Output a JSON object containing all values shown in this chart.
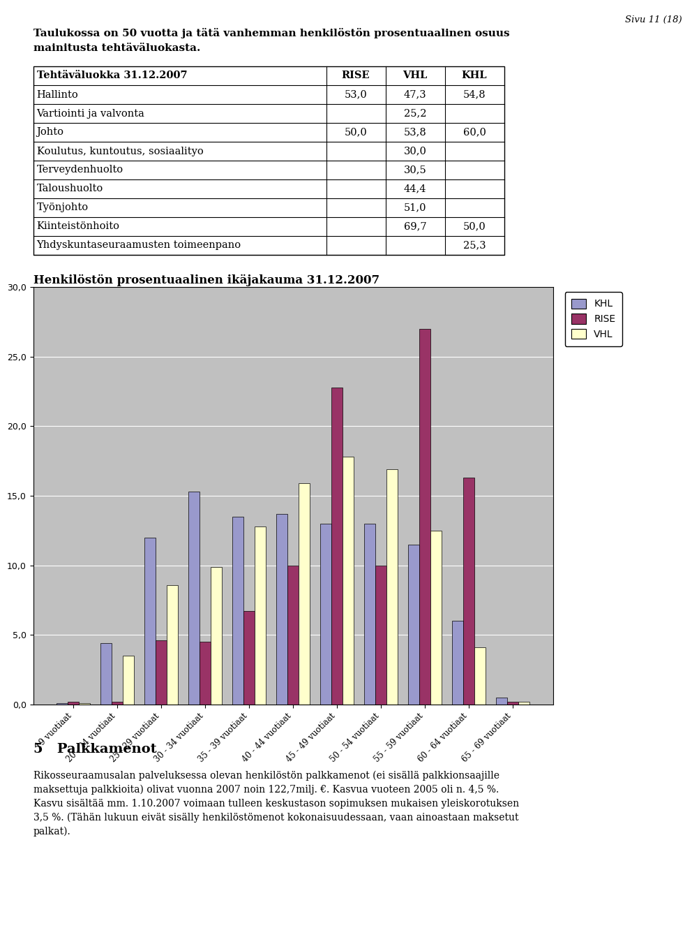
{
  "page_header": "Sivu 11 (18)",
  "intro_line1": "Taulukossa on 50 vuotta ja tätä vanhemman henkilöstön prosentuaalinen osuus",
  "intro_line2": "mainitusta tehtäväluokasta.",
  "table_header_col0": "Tehtäväluokka 31.12.2007",
  "table_header_cols": [
    "RISE",
    "VHL",
    "KHL"
  ],
  "table_rows": [
    {
      "label": "Hallinto",
      "RISE": "53,0",
      "VHL": "47,3",
      "KHL": "54,8"
    },
    {
      "label": "Vartiointi ja valvonta",
      "RISE": "",
      "VHL": "25,2",
      "KHL": ""
    },
    {
      "label": "Johto",
      "RISE": "50,0",
      "VHL": "53,8",
      "KHL": "60,0"
    },
    {
      "label": "Koulutus, kuntoutus, sosiaalityo",
      "RISE": "",
      "VHL": "30,0",
      "KHL": ""
    },
    {
      "label": "Terveydenhuolto",
      "RISE": "",
      "VHL": "30,5",
      "KHL": ""
    },
    {
      "label": "Taloushuolto",
      "RISE": "",
      "VHL": "44,4",
      "KHL": ""
    },
    {
      "label": "Työnjohto",
      "RISE": "",
      "VHL": "51,0",
      "KHL": ""
    },
    {
      "label": "Kiinteistönhoito",
      "RISE": "",
      "VHL": "69,7",
      "KHL": "50,0"
    },
    {
      "label": "Yhdyskuntaseuraamusten toimeenpano",
      "RISE": "",
      "VHL": "",
      "KHL": "25,3"
    }
  ],
  "chart_title": "Henkilöstön prosentuaalinen ikäjakauma 31.12.2007",
  "categories": [
    "19 vuotiaat",
    "20 - 24 vuotiaat",
    "25 - 29 vuotiaat",
    "30 - 34 vuotiaat",
    "35 - 39 vuotiaat",
    "40 - 44 vuotiaat",
    "45 - 49 vuotiaat",
    "50 - 54 vuotiaat",
    "55 - 59 vuotiaat",
    "60 - 64 vuotiaat",
    "65 - 69 vuotiaat"
  ],
  "KHL": [
    0.1,
    4.4,
    12.0,
    15.3,
    13.5,
    13.7,
    13.0,
    13.0,
    11.5,
    6.0,
    0.5
  ],
  "RISE": [
    0.2,
    0.2,
    4.6,
    4.5,
    6.7,
    10.0,
    22.8,
    10.0,
    27.0,
    16.3,
    0.2
  ],
  "VHL": [
    0.1,
    3.5,
    8.6,
    9.9,
    12.8,
    15.9,
    17.8,
    16.9,
    12.5,
    4.1,
    0.2
  ],
  "color_KHL": "#9999CC",
  "color_RISE": "#993366",
  "color_VHL": "#FFFFCC",
  "ylim": [
    0,
    30
  ],
  "yticks": [
    0.0,
    5.0,
    10.0,
    15.0,
    20.0,
    25.0,
    30.0
  ],
  "chart_bg": "#C0C0C0",
  "section_num": "5",
  "section_title": "Palkkamenot",
  "body_text_lines": [
    "Rikosseuraamusalan palveluksessa olevan henkilöstön palkkamenot (ei sisällä palkkionsaajille",
    "maksettuja palkkioita) olivat vuonna 2007 noin 122,7milj. €. Kasvua vuoteen 2005 oli n. 4,5 %.",
    "Kasvu sisältää mm. 1.10.2007 voimaan tulleen keskustason sopimuksen mukaisen yleiskorotuksen",
    "3,5 %. (Tähän lukuun eivät sisälly henkilöstömenot kokonaisuudessaan, vaan ainoastaan maksetut",
    "palkat)."
  ]
}
